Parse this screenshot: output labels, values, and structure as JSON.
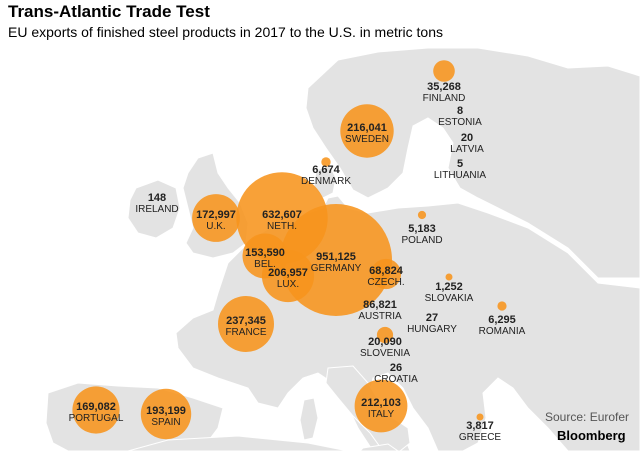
{
  "header": {
    "title": "Trans-Atlantic Trade Test",
    "subtitle": "EU exports of finished steel products in 2017 to the U.S. in metric tons"
  },
  "footer": {
    "source": "Source: Eurofer",
    "brand": "Bloomberg"
  },
  "colors": {
    "land": "#e3e3e3",
    "sea": "#ffffff",
    "border": "#ffffff",
    "bubble": "#f7941d",
    "label": "#222222"
  },
  "map": {
    "type": "proportional-symbol",
    "countries": [
      {
        "name": "FINLAND",
        "value": "35,268"
      },
      {
        "name": "ESTONIA",
        "value": "8"
      },
      {
        "name": "LATVIA",
        "value": "20"
      },
      {
        "name": "LITHUANIA",
        "value": "5"
      },
      {
        "name": "SWEDEN",
        "value": "216,041"
      },
      {
        "name": "DENMARK",
        "value": "6,674"
      },
      {
        "name": "IRELAND",
        "value": "148"
      },
      {
        "name": "U.K.",
        "value": "172,997"
      },
      {
        "name": "NETH.",
        "value": "632,607"
      },
      {
        "name": "BEL.",
        "value": "153,590"
      },
      {
        "name": "LUX.",
        "value": "206,957"
      },
      {
        "name": "GERMANY",
        "value": "951,125"
      },
      {
        "name": "CZECH.",
        "value": "68,824"
      },
      {
        "name": "POLAND",
        "value": "5,183"
      },
      {
        "name": "SLOVAKIA",
        "value": "1,252"
      },
      {
        "name": "AUSTRIA",
        "value": "86,821"
      },
      {
        "name": "HUNGARY",
        "value": "27"
      },
      {
        "name": "ROMANIA",
        "value": "6,295"
      },
      {
        "name": "SLOVENIA",
        "value": "20,090"
      },
      {
        "name": "CROATIA",
        "value": "26"
      },
      {
        "name": "FRANCE",
        "value": "237,345"
      },
      {
        "name": "PORTUGAL",
        "value": "169,082"
      },
      {
        "name": "SPAIN",
        "value": "193,199"
      },
      {
        "name": "ITALY",
        "value": "212,103"
      },
      {
        "name": "GREECE",
        "value": "3,817"
      }
    ]
  }
}
